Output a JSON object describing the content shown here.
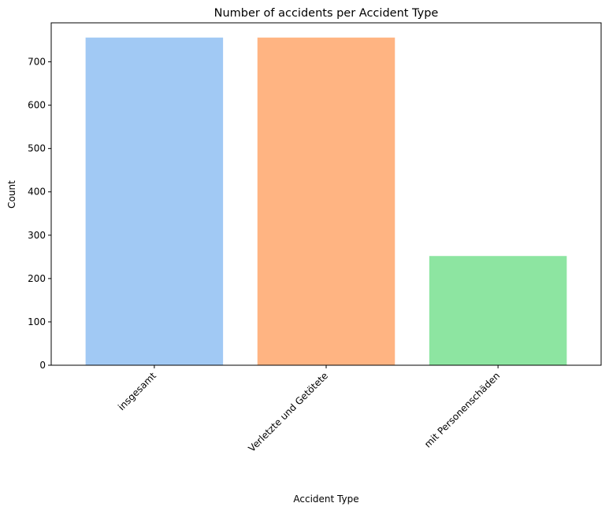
{
  "chart_data": {
    "type": "bar",
    "title": "Number of accidents per Accident Type",
    "xlabel": "Accident Type",
    "ylabel": "Count",
    "categories": [
      "insgesamt",
      "Verletzte und Getötete",
      "mit Personenschäden"
    ],
    "values": [
      756,
      756,
      252
    ],
    "colors": [
      "#a1c9f4",
      "#ffb482",
      "#8de5a1"
    ],
    "ylim": [
      0,
      790
    ],
    "yticks": [
      0,
      100,
      200,
      300,
      400,
      500,
      600,
      700
    ],
    "grid": false,
    "legend": "none"
  }
}
